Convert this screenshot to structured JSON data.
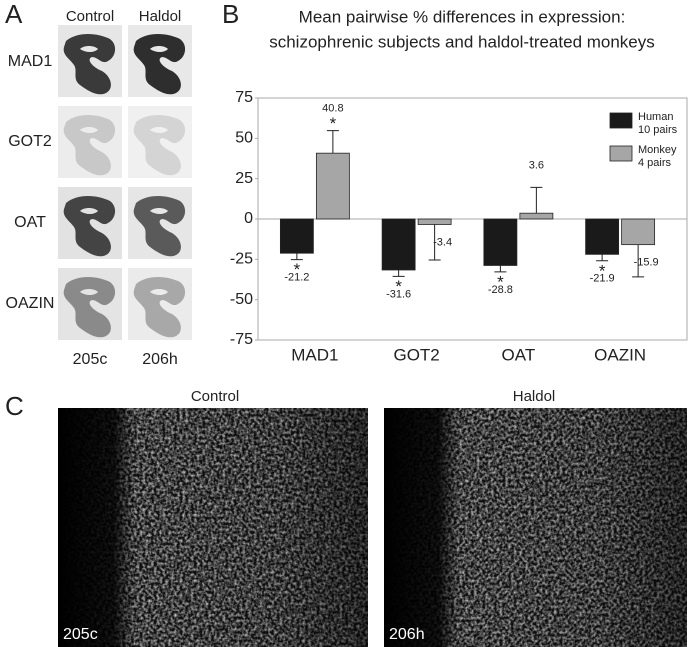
{
  "panel_a": {
    "label": "A",
    "columns": [
      "Control",
      "Haldol"
    ],
    "rows": [
      "MAD1",
      "GOT2",
      "OAT",
      "OAZIN"
    ],
    "footer": [
      "205c",
      "206h"
    ]
  },
  "chart_data": {
    "type": "bar",
    "panel_label": "B",
    "title": "Mean pairwise % differences in expression:",
    "subtitle": "schizophrenic subjects and haldol-treated monkeys",
    "categories": [
      "MAD1",
      "GOT2",
      "OAT",
      "OAZIN"
    ],
    "series": [
      {
        "name": "Human",
        "note": "10 pairs",
        "color": "#1a1a1a",
        "values": [
          -21.2,
          -31.6,
          -28.8,
          -21.9
        ],
        "errors": [
          4,
          4,
          4,
          4
        ],
        "significance": [
          "*",
          "*",
          "*",
          "*"
        ]
      },
      {
        "name": "Monkey",
        "note": "4 pairs",
        "color": "#a6a6a6",
        "values": [
          40.8,
          -3.4,
          3.6,
          -15.9
        ],
        "errors": [
          14,
          22,
          16,
          20
        ],
        "significance": [
          "*",
          null,
          null,
          null
        ]
      }
    ],
    "ylim": [
      -75,
      75
    ],
    "yticks": [
      -75,
      -50,
      -25,
      0,
      25,
      50,
      75
    ],
    "legend": "upper right",
    "grid": false
  },
  "panel_c": {
    "label": "C",
    "columns": [
      "Control",
      "Haldol"
    ],
    "footer": [
      "205c",
      "206h"
    ]
  }
}
